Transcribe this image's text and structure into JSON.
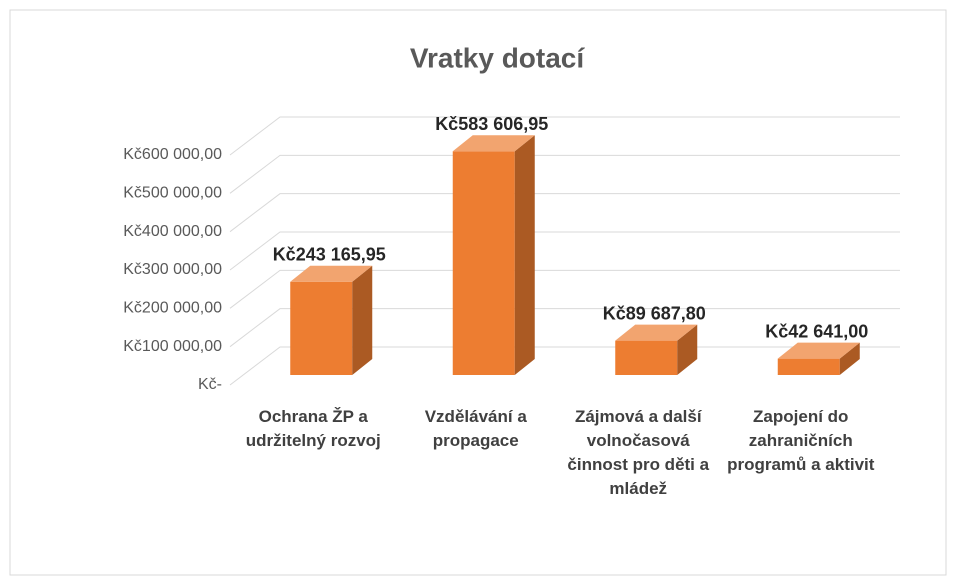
{
  "chart_data": {
    "type": "bar3d",
    "title": "Vratky dotací",
    "categories": [
      "Ochrana ŽP a udržitelný rozvoj",
      "Vzdělávání a propagace",
      "Zájmová a další volnočasová činnost pro děti a mládež",
      "Zapojení do zahraničních programů a aktivit"
    ],
    "values": [
      243165.95,
      583606.95,
      89687.8,
      42641.0
    ],
    "value_labels": [
      "Kč243 165,95",
      "Kč583 606,95",
      "Kč89 687,80",
      "Kč42 641,00"
    ],
    "color": "#ed7d31",
    "ylim": [
      0,
      600000
    ],
    "yticks": [
      {
        "value": 0,
        "label": "Kč-"
      },
      {
        "value": 100000,
        "label": "Kč100 000,00"
      },
      {
        "value": 200000,
        "label": "Kč200 000,00"
      },
      {
        "value": 300000,
        "label": "Kč300 000,00"
      },
      {
        "value": 400000,
        "label": "Kč400 000,00"
      },
      {
        "value": 500000,
        "label": "Kč500 000,00"
      },
      {
        "value": 600000,
        "label": "Kč600 000,00"
      }
    ],
    "grid": true
  }
}
